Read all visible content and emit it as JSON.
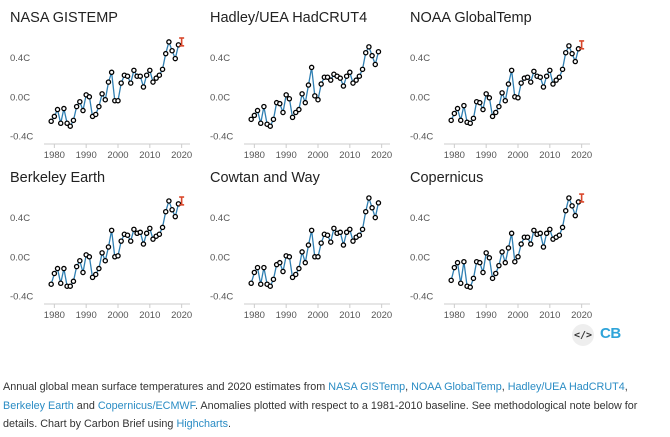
{
  "chart_data": {
    "type": "line",
    "shared": {
      "x_tick_labels": [
        "1980",
        "1990",
        "2000",
        "2010",
        "2020"
      ],
      "y_tick_labels": [
        "-0.4C",
        "0.0C",
        "0.4C"
      ],
      "xlim": [
        1978,
        2022
      ],
      "ylim": [
        -0.4,
        0.6
      ],
      "marker_color": "#000000",
      "line_color": "#2f7fb2",
      "estimate_color": "#d9472b"
    },
    "panels": [
      {
        "title": "NASA GISTEMP",
        "years": [
          1979,
          1980,
          1981,
          1982,
          1983,
          1984,
          1985,
          1986,
          1987,
          1988,
          1989,
          1990,
          1991,
          1992,
          1993,
          1994,
          1995,
          1996,
          1997,
          1998,
          1999,
          2000,
          2001,
          2002,
          2003,
          2004,
          2005,
          2006,
          2007,
          2008,
          2009,
          2010,
          2011,
          2012,
          2013,
          2014,
          2015,
          2016,
          2017,
          2018,
          2019
        ],
        "values": [
          -0.25,
          -0.2,
          -0.13,
          -0.27,
          -0.12,
          -0.27,
          -0.3,
          -0.24,
          -0.1,
          -0.05,
          -0.14,
          0.02,
          0.0,
          -0.2,
          -0.18,
          -0.1,
          0.03,
          -0.03,
          0.15,
          0.25,
          -0.04,
          -0.04,
          0.14,
          0.22,
          0.21,
          0.14,
          0.27,
          0.21,
          0.21,
          0.1,
          0.22,
          0.27,
          0.15,
          0.19,
          0.22,
          0.28,
          0.44,
          0.56,
          0.47,
          0.39,
          0.53
        ],
        "estimate": {
          "year": 2020,
          "low": 0.52,
          "high": 0.6
        }
      },
      {
        "title": "Hadley/UEA HadCRUT4",
        "years": [
          1979,
          1980,
          1981,
          1982,
          1983,
          1984,
          1985,
          1986,
          1987,
          1988,
          1989,
          1990,
          1991,
          1992,
          1993,
          1994,
          1995,
          1996,
          1997,
          1998,
          1999,
          2000,
          2001,
          2002,
          2003,
          2004,
          2005,
          2006,
          2007,
          2008,
          2009,
          2010,
          2011,
          2012,
          2013,
          2014,
          2015,
          2016,
          2017,
          2018,
          2019
        ],
        "values": [
          -0.23,
          -0.19,
          -0.14,
          -0.27,
          -0.1,
          -0.28,
          -0.3,
          -0.23,
          -0.06,
          -0.07,
          -0.16,
          0.02,
          -0.02,
          -0.21,
          -0.16,
          -0.13,
          0.03,
          -0.06,
          0.12,
          0.3,
          0.01,
          -0.03,
          0.13,
          0.2,
          0.2,
          0.17,
          0.23,
          0.21,
          0.19,
          0.11,
          0.21,
          0.25,
          0.14,
          0.17,
          0.21,
          0.28,
          0.45,
          0.51,
          0.42,
          0.33,
          0.46
        ],
        "estimate": null
      },
      {
        "title": "NOAA GlobalTemp",
        "years": [
          1979,
          1980,
          1981,
          1982,
          1983,
          1984,
          1985,
          1986,
          1987,
          1988,
          1989,
          1990,
          1991,
          1992,
          1993,
          1994,
          1995,
          1996,
          1997,
          1998,
          1999,
          2000,
          2001,
          2002,
          2003,
          2004,
          2005,
          2006,
          2007,
          2008,
          2009,
          2010,
          2011,
          2012,
          2013,
          2014,
          2015,
          2016,
          2017,
          2018,
          2019
        ],
        "values": [
          -0.24,
          -0.17,
          -0.12,
          -0.24,
          -0.09,
          -0.26,
          -0.27,
          -0.22,
          -0.05,
          -0.06,
          -0.13,
          0.03,
          -0.01,
          -0.2,
          -0.16,
          -0.1,
          0.04,
          -0.04,
          0.13,
          0.27,
          0.0,
          -0.01,
          0.14,
          0.19,
          0.2,
          0.15,
          0.26,
          0.21,
          0.2,
          0.1,
          0.21,
          0.27,
          0.13,
          0.17,
          0.2,
          0.28,
          0.45,
          0.52,
          0.44,
          0.36,
          0.49
        ],
        "estimate": {
          "year": 2020,
          "low": 0.49,
          "high": 0.57
        }
      },
      {
        "title": "Berkeley Earth",
        "years": [
          1979,
          1980,
          1981,
          1982,
          1983,
          1984,
          1985,
          1986,
          1987,
          1988,
          1989,
          1990,
          1991,
          1992,
          1993,
          1994,
          1995,
          1996,
          1997,
          1998,
          1999,
          2000,
          2001,
          2002,
          2003,
          2004,
          2005,
          2006,
          2007,
          2008,
          2009,
          2010,
          2011,
          2012,
          2013,
          2014,
          2015,
          2016,
          2017,
          2018,
          2019
        ],
        "values": [
          -0.28,
          -0.17,
          -0.12,
          -0.27,
          -0.12,
          -0.3,
          -0.3,
          -0.25,
          -0.1,
          -0.04,
          -0.16,
          0.02,
          0.0,
          -0.21,
          -0.18,
          -0.12,
          0.04,
          -0.04,
          0.1,
          0.27,
          0.0,
          0.01,
          0.16,
          0.23,
          0.22,
          0.16,
          0.28,
          0.24,
          0.25,
          0.13,
          0.24,
          0.29,
          0.18,
          0.21,
          0.23,
          0.3,
          0.46,
          0.57,
          0.48,
          0.41,
          0.54
        ],
        "estimate": {
          "year": 2020,
          "low": 0.53,
          "high": 0.61
        }
      },
      {
        "title": "Cowtan and Way",
        "years": [
          1979,
          1980,
          1981,
          1982,
          1983,
          1984,
          1985,
          1986,
          1987,
          1988,
          1989,
          1990,
          1991,
          1992,
          1993,
          1994,
          1995,
          1996,
          1997,
          1998,
          1999,
          2000,
          2001,
          2002,
          2003,
          2004,
          2005,
          2006,
          2007,
          2008,
          2009,
          2010,
          2011,
          2012,
          2013,
          2014,
          2015,
          2016,
          2017,
          2018,
          2019
        ],
        "values": [
          -0.27,
          -0.16,
          -0.11,
          -0.28,
          -0.11,
          -0.28,
          -0.3,
          -0.23,
          -0.08,
          -0.06,
          -0.15,
          0.01,
          0.0,
          -0.21,
          -0.18,
          -0.12,
          0.05,
          -0.06,
          0.12,
          0.27,
          0.0,
          0.0,
          0.14,
          0.23,
          0.22,
          0.15,
          0.29,
          0.24,
          0.25,
          0.12,
          0.25,
          0.28,
          0.16,
          0.2,
          0.22,
          0.28,
          0.46,
          0.6,
          0.5,
          0.4,
          0.55
        ],
        "estimate": null
      },
      {
        "title": "Copernicus",
        "years": [
          1979,
          1980,
          1981,
          1982,
          1983,
          1984,
          1985,
          1986,
          1987,
          1988,
          1989,
          1990,
          1991,
          1992,
          1993,
          1994,
          1995,
          1996,
          1997,
          1998,
          1999,
          2000,
          2001,
          2002,
          2003,
          2004,
          2005,
          2006,
          2007,
          2008,
          2009,
          2010,
          2011,
          2012,
          2013,
          2014,
          2015,
          2016,
          2017,
          2018,
          2019
        ],
        "values": [
          -0.24,
          -0.11,
          -0.06,
          -0.27,
          -0.05,
          -0.3,
          -0.31,
          -0.22,
          -0.05,
          -0.06,
          -0.16,
          0.04,
          -0.01,
          -0.22,
          -0.17,
          -0.09,
          0.05,
          -0.06,
          0.09,
          0.24,
          -0.05,
          0.0,
          0.13,
          0.2,
          0.2,
          0.13,
          0.27,
          0.23,
          0.24,
          0.1,
          0.24,
          0.28,
          0.18,
          0.2,
          0.22,
          0.3,
          0.47,
          0.6,
          0.52,
          0.42,
          0.56
        ],
        "estimate": {
          "year": 2020,
          "low": 0.56,
          "high": 0.64
        }
      }
    ]
  },
  "footer": {
    "code_icon_text": "</>",
    "logo_text": "CB"
  },
  "caption": {
    "lead": "Annual global mean surface temperatures and 2020 estimates from ",
    "link_nasa": "NASA GISTemp",
    "sep1": ", ",
    "link_noaa": "NOAA GlobalTemp",
    "sep2": ", ",
    "link_hadley": "Hadley/UEA HadCRUT4",
    "sep3": ",",
    "link_berkeley": "Berkeley Earth",
    "and_text": " and ",
    "link_copernicus": "Copernicus/ECMWF",
    "body": ". Anomalies plotted with respect to a 1981-2010 baseline. See methodological note below for details. Chart by Carbon Brief using ",
    "link_highcharts": "Highcharts",
    "end": "."
  }
}
